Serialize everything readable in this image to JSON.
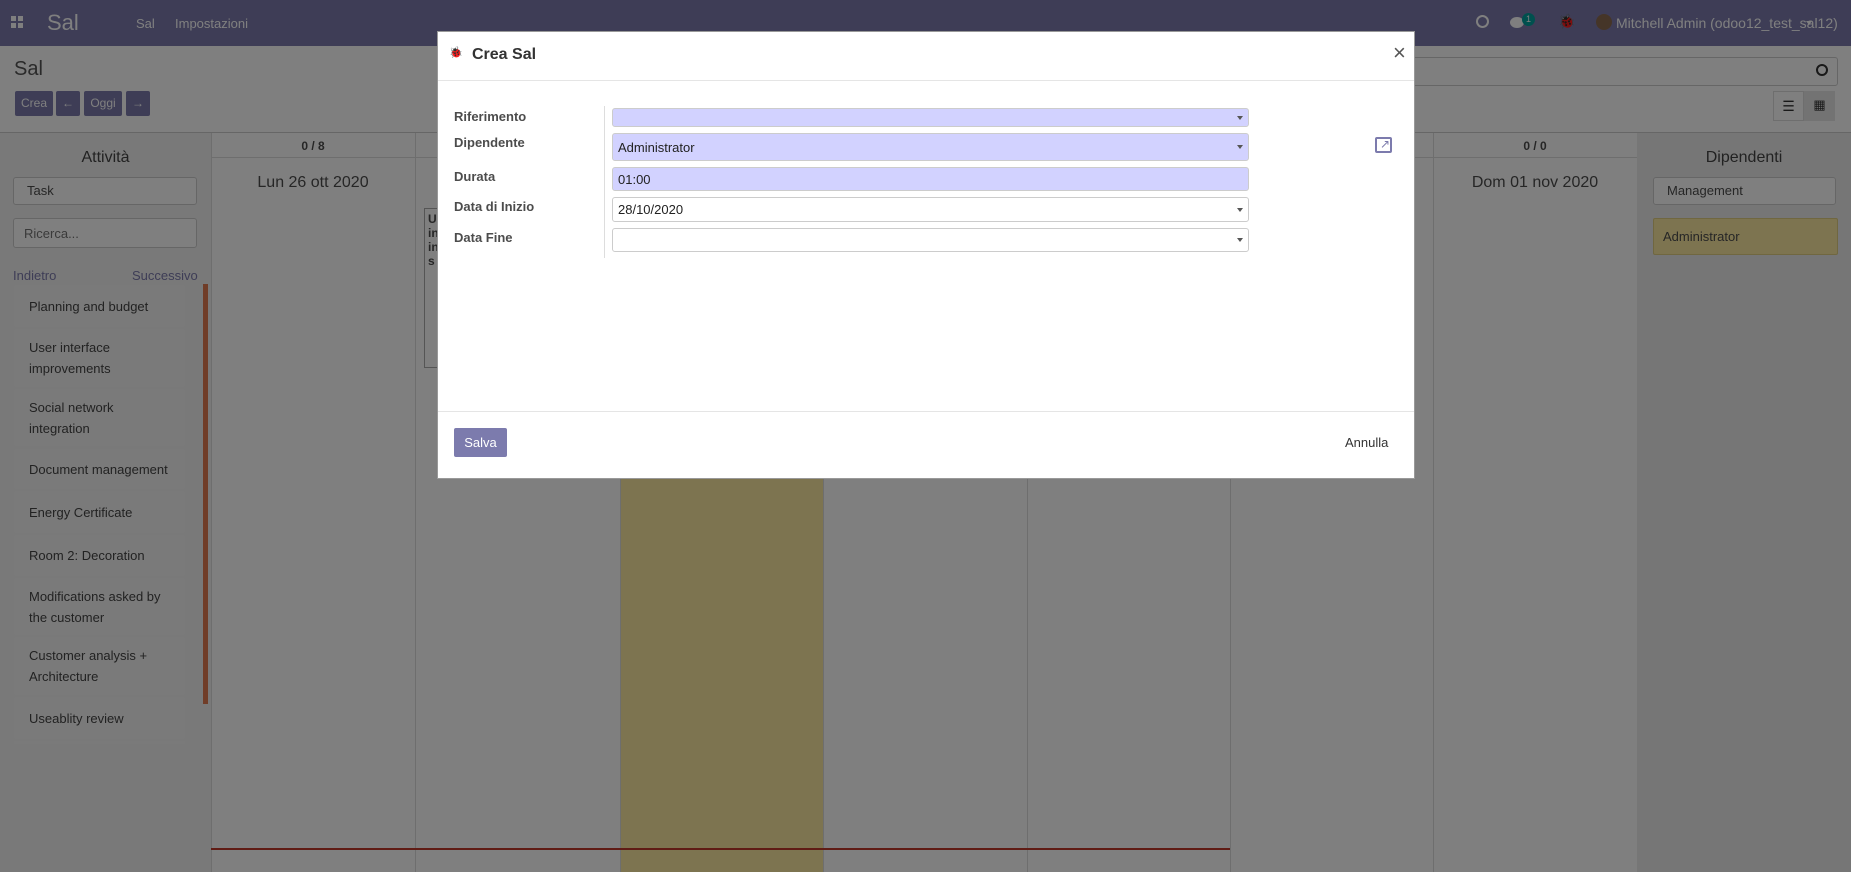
{
  "navbar": {
    "brand": "Sal",
    "menu": [
      "Sal",
      "Impostazioni"
    ],
    "chat_count": "1",
    "user": "Mitchell Admin (odoo12_test_sal12)"
  },
  "control": {
    "title": "Sal",
    "create": "Crea",
    "today": "Oggi"
  },
  "left": {
    "title": "Attività",
    "select": "Task",
    "search_placeholder": "Ricerca...",
    "prev": "Indietro",
    "next": "Successivo",
    "items": [
      "Planning and budget",
      "User interface improvements",
      "Social network integration",
      "Document management",
      "Energy Certificate",
      "Room 2: Decoration",
      "Modifications asked by the customer",
      "Customer analysis + Architecture",
      "Useablity review"
    ]
  },
  "calendar": {
    "first_count": "0 / 8",
    "first_date": "Lun 26 ott 2020",
    "last_count": "0 / 0",
    "last_date": "Dom 01 nov 2020",
    "card_fragment": "U\nin\nin\ns"
  },
  "right": {
    "title": "Dipendenti",
    "select": "Management",
    "item": "Administrator"
  },
  "modal": {
    "title": "Crea Sal",
    "close": "×",
    "fields": [
      {
        "label": "Riferimento",
        "value": ""
      },
      {
        "label": "Dipendente",
        "value": "Administrator"
      },
      {
        "label": "Durata",
        "value": "01:00"
      },
      {
        "label": "Data di Inizio",
        "value": "28/10/2020"
      },
      {
        "label": "Data Fine",
        "value": ""
      }
    ],
    "save": "Salva",
    "cancel": "Annulla"
  },
  "colors": {
    "brand": "#7c7bad",
    "highlight": "#fae8a0",
    "required": "#d2d2ff",
    "now_line": "#c0392b"
  }
}
